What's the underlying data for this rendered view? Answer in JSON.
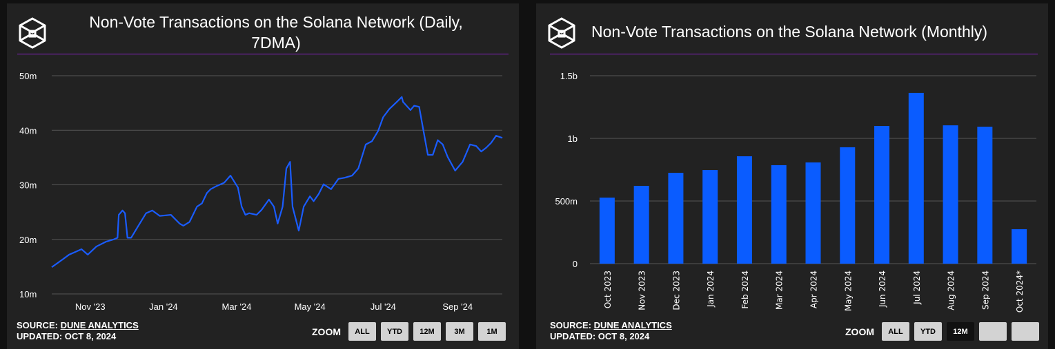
{
  "colors": {
    "bar": "#0a5cff",
    "line": "#1a5cff",
    "divider": "#8a22c9",
    "panel": "#222222"
  },
  "source": {
    "label": "SOURCE:",
    "name": "DUNE ANALYTICS",
    "updated": "UPDATED: OCT 8, 2024"
  },
  "zoom_label": "ZOOM",
  "chart_data": [
    {
      "type": "line",
      "title": "Non-Vote Transactions on the Solana Network (Daily, 7DMA)",
      "title_line1": "Non-Vote Transactions on the Solana Network (Daily,",
      "title_line2": "7DMA)",
      "x_unit": "days since 2023-10-10",
      "ylim": [
        10,
        50
      ],
      "yticks": [
        {
          "v": 50,
          "label": "50m"
        },
        {
          "v": 40,
          "label": "40m"
        },
        {
          "v": 30,
          "label": "30m"
        },
        {
          "v": 20,
          "label": "20m"
        },
        {
          "v": 10,
          "label": "10m"
        }
      ],
      "xticks": [
        {
          "v": 31,
          "label": "Nov '23"
        },
        {
          "v": 90,
          "label": "Jan '24"
        },
        {
          "v": 149,
          "label": "Mar '24"
        },
        {
          "v": 208,
          "label": "May '24"
        },
        {
          "v": 267,
          "label": "Jul '24"
        },
        {
          "v": 327,
          "label": "Sep '24"
        }
      ],
      "xlim": [
        0,
        363
      ],
      "grid": true,
      "points": [
        [
          0,
          14.9
        ],
        [
          8,
          16.2
        ],
        [
          14,
          17.2
        ],
        [
          19,
          17.7
        ],
        [
          24,
          18.2
        ],
        [
          29,
          17.2
        ],
        [
          36,
          18.7
        ],
        [
          44,
          19.6
        ],
        [
          50,
          20.0
        ],
        [
          53,
          20.3
        ],
        [
          54,
          24.5
        ],
        [
          57,
          25.3
        ],
        [
          59,
          24.8
        ],
        [
          61,
          20.3
        ],
        [
          64,
          20.3
        ],
        [
          69,
          22.2
        ],
        [
          76,
          24.8
        ],
        [
          81,
          25.3
        ],
        [
          87,
          24.3
        ],
        [
          96,
          24.5
        ],
        [
          103,
          22.9
        ],
        [
          106,
          22.5
        ],
        [
          111,
          23.2
        ],
        [
          117,
          26.0
        ],
        [
          121,
          26.6
        ],
        [
          125,
          28.5
        ],
        [
          128,
          29.2
        ],
        [
          133,
          29.8
        ],
        [
          139,
          30.4
        ],
        [
          144,
          31.7
        ],
        [
          150,
          29.5
        ],
        [
          153,
          26.0
        ],
        [
          156,
          24.5
        ],
        [
          159,
          24.8
        ],
        [
          165,
          24.5
        ],
        [
          169,
          25.4
        ],
        [
          175,
          27.3
        ],
        [
          179,
          26.0
        ],
        [
          182,
          22.9
        ],
        [
          186,
          26.0
        ],
        [
          189,
          33.0
        ],
        [
          192,
          34.2
        ],
        [
          194,
          26.0
        ],
        [
          199,
          21.6
        ],
        [
          203,
          26.0
        ],
        [
          208,
          27.9
        ],
        [
          211,
          27.0
        ],
        [
          215,
          28.3
        ],
        [
          219,
          30.1
        ],
        [
          225,
          29.2
        ],
        [
          231,
          31.1
        ],
        [
          236,
          31.3
        ],
        [
          242,
          31.7
        ],
        [
          247,
          33.0
        ],
        [
          253,
          37.4
        ],
        [
          258,
          38.0
        ],
        [
          263,
          39.9
        ],
        [
          267,
          42.4
        ],
        [
          272,
          43.9
        ],
        [
          278,
          45.2
        ],
        [
          282,
          46.1
        ],
        [
          283,
          45.2
        ],
        [
          289,
          43.7
        ],
        [
          292,
          44.5
        ],
        [
          296,
          44.3
        ],
        [
          299,
          40.5
        ],
        [
          303,
          35.5
        ],
        [
          307,
          35.5
        ],
        [
          311,
          38.2
        ],
        [
          315,
          37.4
        ],
        [
          319,
          35.1
        ],
        [
          325,
          32.6
        ],
        [
          331,
          34.2
        ],
        [
          337,
          37.4
        ],
        [
          342,
          37.1
        ],
        [
          346,
          36.1
        ],
        [
          350,
          36.8
        ],
        [
          354,
          37.7
        ],
        [
          358,
          39.0
        ],
        [
          363,
          38.6
        ]
      ],
      "zoom_buttons": [
        "ALL",
        "YTD",
        "12M",
        "3M",
        "1M"
      ]
    },
    {
      "type": "bar",
      "title": "Non-Vote Transactions on the Solana Network (Monthly)",
      "ylim": [
        0,
        1.5
      ],
      "unit": "billions",
      "yticks": [
        {
          "v": 1.5,
          "label": "1.5b"
        },
        {
          "v": 1,
          "label": "1b"
        },
        {
          "v": 0.5,
          "label": "500m"
        },
        {
          "v": 0,
          "label": "0"
        }
      ],
      "categories": [
        "Oct 2023",
        "Nov 2023",
        "Dec 2023",
        "Jan 2024",
        "Feb 2024",
        "Mar 2024",
        "Apr 2024",
        "May 2024",
        "Jun 2024",
        "Jul 2024",
        "Aug 2024",
        "Sep 2024",
        "Oct 2024*"
      ],
      "values": [
        0.527,
        0.621,
        0.725,
        0.747,
        0.857,
        0.786,
        0.808,
        0.929,
        1.099,
        1.363,
        1.104,
        1.093,
        0.275
      ],
      "grid": true,
      "zoom_buttons": [
        "ALL",
        "YTD",
        "12M",
        "",
        ""
      ],
      "zoom_active": "12M"
    }
  ]
}
